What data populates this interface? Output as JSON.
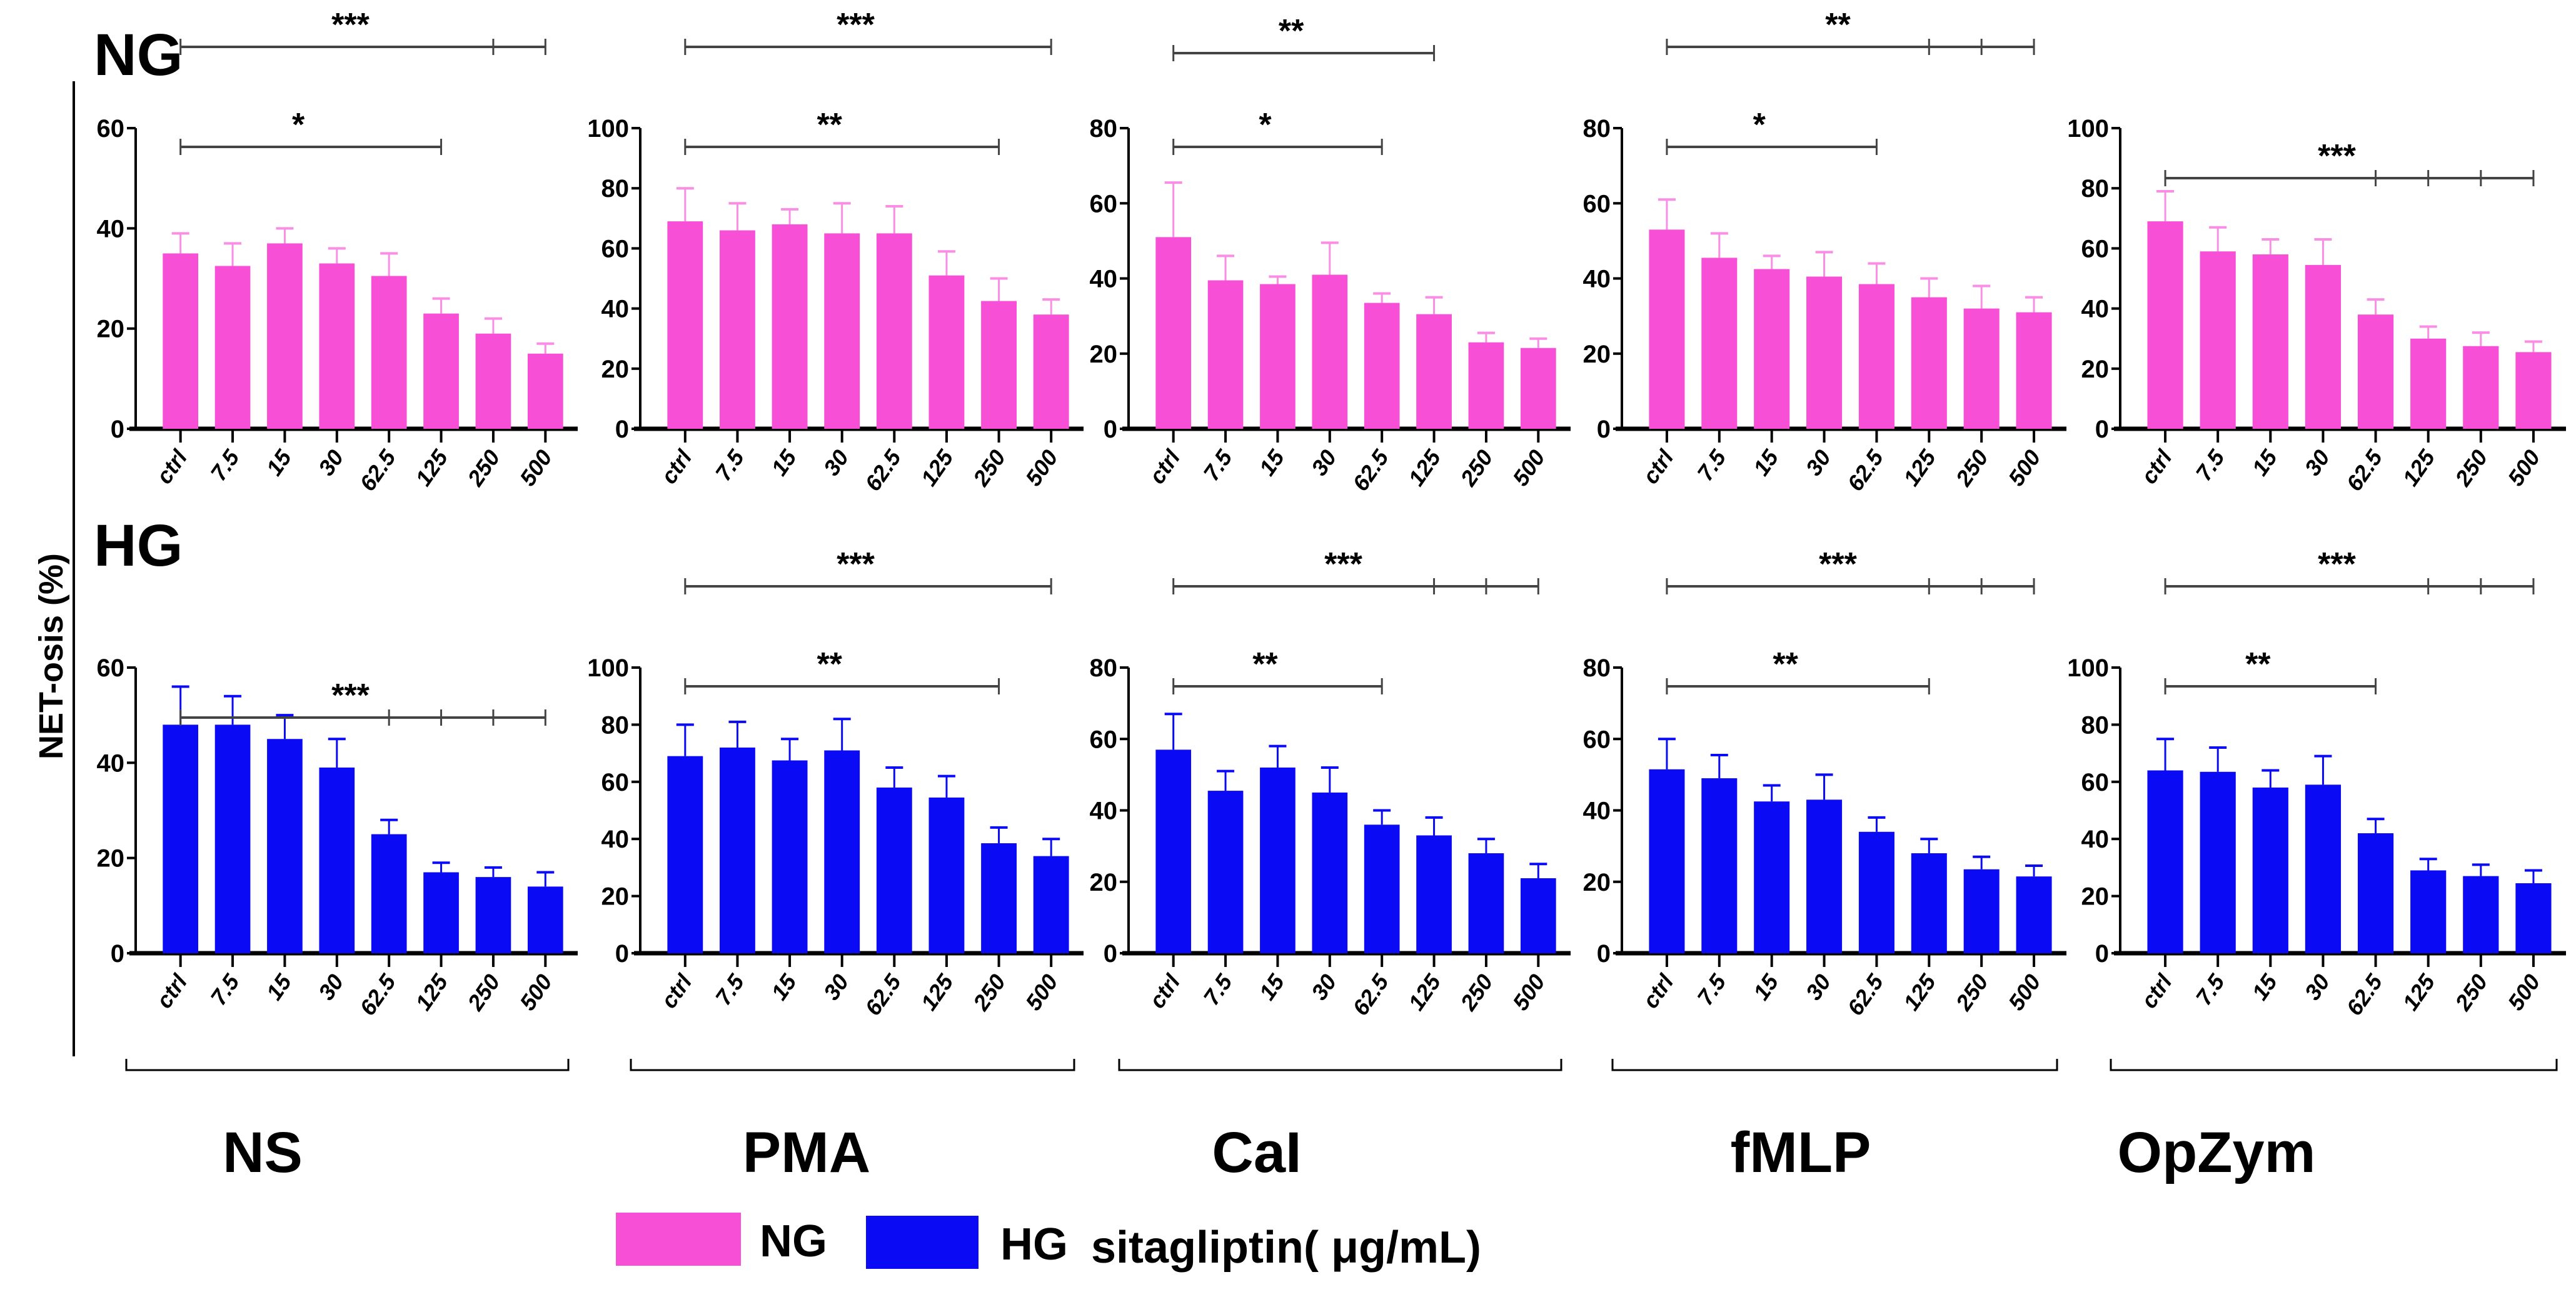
{
  "chart_data": {
    "type": "bar",
    "ylabel": "NET-osis (%)",
    "categories": [
      "ctrl",
      "7.5",
      "15",
      "30",
      "62.5",
      "125",
      "250",
      "500"
    ],
    "row_labels": [
      "NG",
      "HG"
    ],
    "group_labels": [
      "NS",
      "PMA",
      "CaI",
      "fMLP",
      "OpZym"
    ],
    "legend": {
      "items": [
        {
          "name": "NG",
          "color": "#f74fd6"
        },
        {
          "name": "HG",
          "color": "#0a0af5"
        }
      ],
      "title": "sitagliptin( μg/mL)",
      "placement": "bottom"
    },
    "panels": [
      {
        "row": "NG",
        "group": "NS",
        "ylim": [
          0,
          60
        ],
        "yticks": [
          0,
          20,
          40,
          60
        ],
        "values": [
          35,
          32.5,
          37,
          33,
          30.5,
          23,
          19,
          15
        ],
        "err_top": [
          39,
          37,
          40,
          36,
          35,
          26,
          22,
          17
        ],
        "sig": [
          {
            "label": "***",
            "from": 0,
            "to": 7,
            "ticks": [
              6
            ]
          },
          {
            "label": "*",
            "from": 0,
            "to": 5,
            "ticks": []
          }
        ]
      },
      {
        "row": "NG",
        "group": "PMA",
        "ylim": [
          0,
          100
        ],
        "yticks": [
          0,
          20,
          40,
          60,
          80,
          100
        ],
        "values": [
          69,
          66,
          68,
          65,
          65,
          51,
          42.5,
          38
        ],
        "err_top": [
          80,
          75,
          73,
          75,
          74,
          59,
          50,
          43
        ],
        "sig": [
          {
            "label": "***",
            "from": 0,
            "to": 7,
            "ticks": []
          },
          {
            "label": "**",
            "from": 0,
            "to": 6,
            "ticks": []
          }
        ]
      },
      {
        "row": "NG",
        "group": "CaI",
        "ylim": [
          0,
          80
        ],
        "yticks": [
          0,
          20,
          40,
          60,
          80
        ],
        "values": [
          51,
          39.5,
          38.5,
          41,
          33.5,
          30.5,
          23,
          21.5
        ],
        "err_top": [
          65.5,
          46,
          40.5,
          49.5,
          36,
          35,
          25.5,
          24
        ],
        "sig": [
          {
            "label": "***",
            "from": 0,
            "to": 7,
            "ticks": [
              6
            ]
          },
          {
            "label": "**",
            "from": 0,
            "to": 5,
            "ticks": []
          },
          {
            "label": "*",
            "from": 0,
            "to": 4,
            "ticks": []
          }
        ]
      },
      {
        "row": "NG",
        "group": "fMLP",
        "ylim": [
          0,
          80
        ],
        "yticks": [
          0,
          20,
          40,
          60,
          80
        ],
        "values": [
          53,
          45.5,
          42.5,
          40.5,
          38.5,
          35,
          32,
          31
        ],
        "err_top": [
          61,
          52,
          46,
          47,
          44,
          40,
          38,
          35
        ],
        "sig": [
          {
            "label": "**",
            "from": 0,
            "to": 7,
            "ticks": [
              5,
              6
            ]
          },
          {
            "label": "*",
            "from": 0,
            "to": 4,
            "ticks": []
          }
        ]
      },
      {
        "row": "NG",
        "group": "OpZym",
        "ylim": [
          0,
          100
        ],
        "yticks": [
          0,
          20,
          40,
          60,
          80,
          100
        ],
        "values": [
          69,
          59,
          58,
          54.5,
          38,
          30,
          27.5,
          25.5
        ],
        "err_top": [
          79,
          67,
          63,
          63,
          43,
          34,
          32,
          29
        ],
        "sig": [
          {
            "label": "***",
            "from": 0,
            "to": 7,
            "ticks": [
              4,
              5,
              6
            ]
          }
        ]
      },
      {
        "row": "HG",
        "group": "NS",
        "ylim": [
          0,
          60
        ],
        "yticks": [
          0,
          20,
          40,
          60
        ],
        "values": [
          48,
          48,
          45,
          39,
          25,
          17,
          16,
          14
        ],
        "err_top": [
          56,
          54,
          50,
          45,
          28,
          19,
          18,
          17
        ],
        "sig": [
          {
            "label": "***",
            "from": 0,
            "to": 7,
            "ticks": [
              4,
              5,
              6
            ]
          }
        ]
      },
      {
        "row": "HG",
        "group": "PMA",
        "ylim": [
          0,
          100
        ],
        "yticks": [
          0,
          20,
          40,
          60,
          80,
          100
        ],
        "values": [
          69,
          72,
          67.5,
          71,
          58,
          54.5,
          38.5,
          34
        ],
        "err_top": [
          80,
          81,
          75,
          82,
          65,
          62,
          44,
          40
        ],
        "sig": [
          {
            "label": "***",
            "from": 0,
            "to": 7,
            "ticks": []
          },
          {
            "label": "**",
            "from": 0,
            "to": 6,
            "ticks": []
          }
        ]
      },
      {
        "row": "HG",
        "group": "CaI",
        "ylim": [
          0,
          80
        ],
        "yticks": [
          0,
          20,
          40,
          60,
          80
        ],
        "values": [
          57,
          45.5,
          52,
          45,
          36,
          33,
          28,
          21
        ],
        "err_top": [
          67,
          51,
          58,
          52,
          40,
          38,
          32,
          25
        ],
        "sig": [
          {
            "label": "***",
            "from": 0,
            "to": 7,
            "ticks": [
              5,
              6
            ]
          },
          {
            "label": "**",
            "from": 0,
            "to": 4,
            "ticks": []
          }
        ]
      },
      {
        "row": "HG",
        "group": "fMLP",
        "ylim": [
          0,
          80
        ],
        "yticks": [
          0,
          20,
          40,
          60,
          80
        ],
        "values": [
          51.5,
          49,
          42.5,
          43,
          34,
          28,
          23.5,
          21.5
        ],
        "err_top": [
          60,
          55.5,
          47,
          50,
          38,
          32,
          27,
          24.5
        ],
        "sig": [
          {
            "label": "***",
            "from": 0,
            "to": 7,
            "ticks": [
              5,
              6
            ]
          },
          {
            "label": "**",
            "from": 0,
            "to": 5,
            "ticks": []
          }
        ]
      },
      {
        "row": "HG",
        "group": "OpZym",
        "ylim": [
          0,
          100
        ],
        "yticks": [
          0,
          20,
          40,
          60,
          80,
          100
        ],
        "values": [
          64,
          63.5,
          58,
          59,
          42,
          29,
          27,
          24.5
        ],
        "err_top": [
          75,
          72,
          64,
          69,
          47,
          33,
          31,
          29
        ],
        "sig": [
          {
            "label": "***",
            "from": 0,
            "to": 7,
            "ticks": [
              5,
              6
            ]
          },
          {
            "label": "**",
            "from": 0,
            "to": 4,
            "ticks": []
          }
        ]
      }
    ]
  }
}
